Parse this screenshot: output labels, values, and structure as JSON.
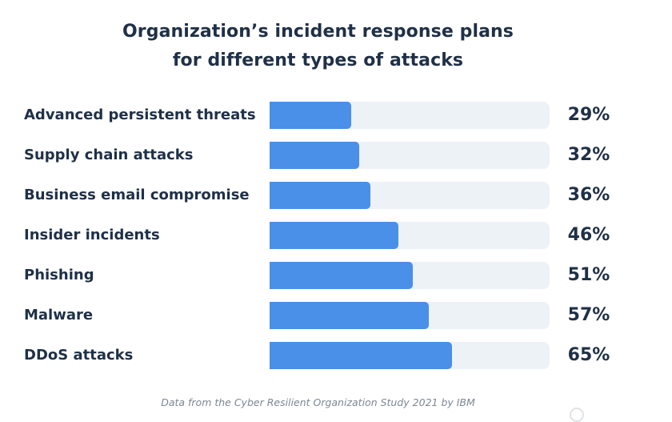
{
  "chart_data": {
    "type": "bar",
    "orientation": "horizontal",
    "title_lines": [
      "Organization’s incident response plans",
      "for different types of attacks"
    ],
    "categories": [
      "Advanced persistent threats",
      "Supply chain attacks",
      "Business email compromise",
      "Insider incidents",
      "Phishing",
      "Malware",
      "DDoS attacks"
    ],
    "values": [
      29,
      32,
      36,
      46,
      51,
      57,
      65
    ],
    "value_labels": [
      "29%",
      "32%",
      "36%",
      "46%",
      "51%",
      "57%",
      "65%"
    ],
    "value_unit": "%",
    "xlim": [
      0,
      100
    ],
    "grid": false,
    "legend": "none",
    "colors": {
      "bar": "#4a8fe8",
      "track": "#edf2f7",
      "text": "#1f3047"
    }
  },
  "footer": {
    "source": "Data from the Cyber Resilient Organization Study 2021 by IBM"
  }
}
